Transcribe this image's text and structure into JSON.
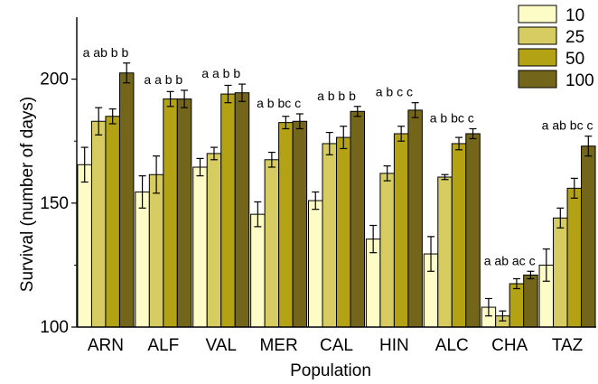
{
  "chart_data": {
    "type": "bar",
    "xlabel": "Population",
    "ylabel": "Survival (number of days)",
    "ylim": [
      100,
      225
    ],
    "yticks": [
      100,
      150,
      200
    ],
    "grid": false,
    "legend_position": "top-right",
    "categories": [
      "ARN",
      "ALF",
      "VAL",
      "MER",
      "CAL",
      "HIN",
      "ALC",
      "CHA",
      "TAZ"
    ],
    "letters": [
      "a ab b b",
      "a a b b",
      "a a b b",
      "a b bc c",
      "a b b b",
      "a b c c",
      "a b bc c",
      "a ab ac c",
      "a ab bc c"
    ],
    "series": [
      {
        "name": "10",
        "color": "#fdfbc6",
        "values": [
          165.5,
          154.5,
          164.5,
          145.5,
          151,
          135.5,
          129.5,
          108,
          125
        ],
        "errors": [
          7,
          6.5,
          3.5,
          5,
          3.5,
          5.5,
          7,
          3.5,
          6.5
        ]
      },
      {
        "name": "25",
        "color": "#d6cc62",
        "values": [
          183,
          161.5,
          170,
          167.5,
          174,
          162,
          160.5,
          104.5,
          144
        ],
        "errors": [
          5.5,
          7.5,
          2.5,
          3,
          4.5,
          3,
          1,
          2,
          4
        ]
      },
      {
        "name": "50",
        "color": "#b2a214",
        "values": [
          185,
          192,
          194,
          182.5,
          176.5,
          178,
          174,
          117.5,
          156
        ],
        "errors": [
          3,
          3,
          3.5,
          2.5,
          4.5,
          3,
          2.5,
          2,
          4
        ]
      },
      {
        "name": "100",
        "color": "#73661a",
        "values": [
          202.5,
          192,
          194.5,
          183,
          187,
          187.5,
          178,
          121,
          173
        ],
        "errors": [
          4,
          3.5,
          3.5,
          3,
          2,
          3,
          2,
          1.5,
          4
        ]
      }
    ]
  }
}
